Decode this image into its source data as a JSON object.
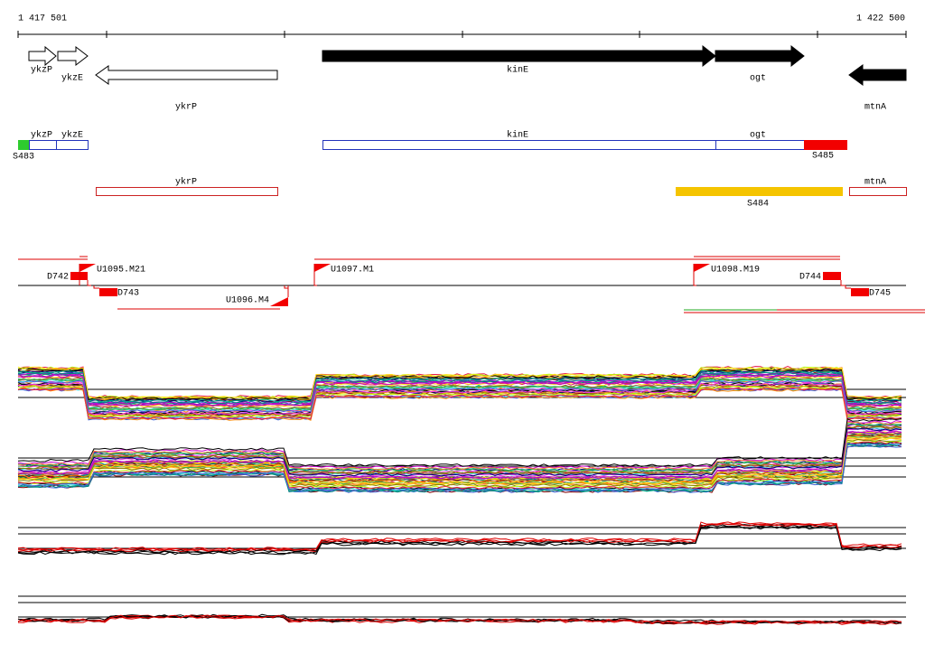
{
  "ruler": {
    "start": "1 417 501",
    "end": "1 422 500"
  },
  "genes": [
    "ykzP",
    "ykzE",
    "ykrP",
    "kinE",
    "ogt",
    "mtnA"
  ],
  "features": [
    "ykzP",
    "ykzE",
    "kinE",
    "ogt",
    "ykrP",
    "mtnA"
  ],
  "segments": [
    "S483",
    "S485",
    "S484"
  ],
  "probes": [
    "D742",
    "U1095.M21",
    "D743",
    "U1096.M4",
    "U1097.M1",
    "U1098.M19",
    "D744",
    "D745"
  ]
}
